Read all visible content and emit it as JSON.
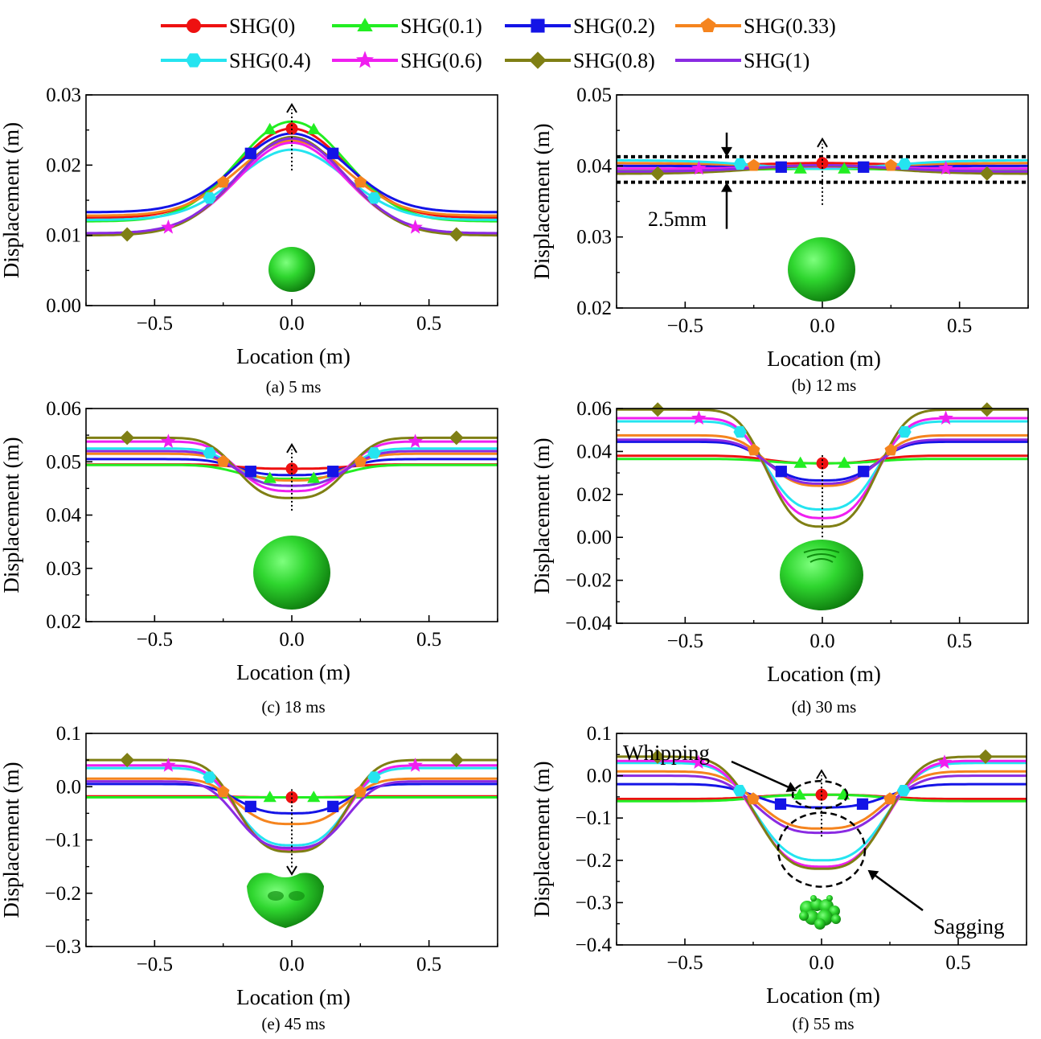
{
  "legend": {
    "placement": "top-center",
    "entries": [
      {
        "label": "SHG(0)",
        "color": "#ee1111",
        "marker": "circle"
      },
      {
        "label": "SHG(0.1)",
        "color": "#22ee22",
        "marker": "triangle"
      },
      {
        "label": "SHG(0.2)",
        "color": "#1414e6",
        "marker": "square"
      },
      {
        "label": "SHG(0.33)",
        "color": "#f5841e",
        "marker": "pentagon"
      },
      {
        "label": "SHG(0.4)",
        "color": "#25e4f0",
        "marker": "hexagon"
      },
      {
        "label": "SHG(0.6)",
        "color": "#f01ef0",
        "marker": "star"
      },
      {
        "label": "SHG(0.8)",
        "color": "#7f7f14",
        "marker": "diamond"
      },
      {
        "label": "SHG(1)",
        "color": "#8a2be2",
        "marker": "none"
      }
    ]
  },
  "colors": {
    "droplet": "#22cc22",
    "droplet_dark": "#0d7a0d"
  },
  "chart_data": [
    {
      "type": "line",
      "caption": "(a) 5 ms",
      "xlabel": "Location (m)",
      "ylabel": "Displacement (m)",
      "xlim": [
        -0.75,
        0.75
      ],
      "ylim": [
        0.0,
        0.03
      ],
      "xticks": [
        -0.5,
        0.0,
        0.5
      ],
      "xtick_labels": [
        "−0.5",
        "0.0",
        "0.5"
      ],
      "yticks": [
        0.0,
        0.01,
        0.02,
        0.03
      ],
      "ytick_labels": [
        "0.00",
        "0.01",
        "0.02",
        "0.03"
      ],
      "arrow": "up",
      "droplet": "small-sphere",
      "series": [
        {
          "name": "SHG(0)",
          "base": 0.0125,
          "center": 0.0252,
          "width": 0.5,
          "power": 1
        },
        {
          "name": "SHG(0.1)",
          "base": 0.012,
          "center": 0.0262,
          "width": 0.5,
          "power": 1
        },
        {
          "name": "SHG(0.2)",
          "base": 0.0133,
          "center": 0.0245,
          "width": 0.5,
          "power": 1
        },
        {
          "name": "SHG(0.33)",
          "base": 0.0128,
          "center": 0.0235,
          "width": 0.5,
          "power": 1
        },
        {
          "name": "SHG(0.4)",
          "base": 0.0122,
          "center": 0.0222,
          "width": 0.5,
          "power": 1
        },
        {
          "name": "SHG(0.6)",
          "base": 0.0102,
          "center": 0.0232,
          "width": 0.5,
          "power": 1
        },
        {
          "name": "SHG(0.8)",
          "base": 0.01,
          "center": 0.024,
          "width": 0.5,
          "power": 1
        },
        {
          "name": "SHG(1)",
          "base": 0.0103,
          "center": 0.0238,
          "width": 0.5,
          "power": 1
        }
      ]
    },
    {
      "type": "line",
      "caption": "(b) 12 ms",
      "xlabel": "Location (m)",
      "ylabel": "Displacement (m)",
      "xlim": [
        -0.75,
        0.75
      ],
      "ylim": [
        0.02,
        0.05
      ],
      "xticks": [
        -0.5,
        0.0,
        0.5
      ],
      "xtick_labels": [
        "−0.5",
        "0.0",
        "0.5"
      ],
      "yticks": [
        0.02,
        0.03,
        0.04,
        0.05
      ],
      "ytick_labels": [
        "0.02",
        "0.03",
        "0.04",
        "0.05"
      ],
      "arrow": "up",
      "droplet": "sphere",
      "band": {
        "upper": 0.0413,
        "lower": 0.0377,
        "label": "2.5mm"
      },
      "series": [
        {
          "name": "SHG(0)",
          "base": 0.04,
          "center": 0.0404,
          "width": 0.6,
          "power": 1
        },
        {
          "name": "SHG(0.1)",
          "base": 0.0394,
          "center": 0.0396,
          "width": 0.6,
          "power": 1
        },
        {
          "name": "SHG(0.2)",
          "base": 0.04,
          "center": 0.0398,
          "width": 0.6,
          "power": 1
        },
        {
          "name": "SHG(0.33)",
          "base": 0.0404,
          "center": 0.0398,
          "width": 0.6,
          "power": 1
        },
        {
          "name": "SHG(0.4)",
          "base": 0.0408,
          "center": 0.0396,
          "width": 0.6,
          "power": 1
        },
        {
          "name": "SHG(0.6)",
          "base": 0.0396,
          "center": 0.0399,
          "width": 0.6,
          "power": 1
        },
        {
          "name": "SHG(0.8)",
          "base": 0.0389,
          "center": 0.04,
          "width": 0.6,
          "power": 1
        },
        {
          "name": "SHG(1)",
          "base": 0.0392,
          "center": 0.0401,
          "width": 0.6,
          "power": 1
        }
      ]
    },
    {
      "type": "line",
      "caption": "(c) 18 ms",
      "xlabel": "Location (m)",
      "ylabel": "Displacement (m)",
      "xlim": [
        -0.75,
        0.75
      ],
      "ylim": [
        0.02,
        0.06
      ],
      "xticks": [
        -0.5,
        0.0,
        0.5
      ],
      "xtick_labels": [
        "−0.5",
        "0.0",
        "0.5"
      ],
      "yticks": [
        0.02,
        0.03,
        0.04,
        0.05,
        0.06
      ],
      "ytick_labels": [
        "0.02",
        "0.03",
        "0.04",
        "0.05",
        "0.06"
      ],
      "arrow": "up",
      "droplet": "large-sphere",
      "series": [
        {
          "name": "SHG(0)",
          "base": 0.0495,
          "center": 0.0487,
          "width": 0.42,
          "power": 1.5
        },
        {
          "name": "SHG(0.1)",
          "base": 0.0494,
          "center": 0.0468,
          "width": 0.42,
          "power": 1.5
        },
        {
          "name": "SHG(0.2)",
          "base": 0.0505,
          "center": 0.0475,
          "width": 0.42,
          "power": 1.5
        },
        {
          "name": "SHG(0.33)",
          "base": 0.0515,
          "center": 0.0465,
          "width": 0.42,
          "power": 1.5
        },
        {
          "name": "SHG(0.4)",
          "base": 0.0525,
          "center": 0.0455,
          "width": 0.42,
          "power": 1.5
        },
        {
          "name": "SHG(0.6)",
          "base": 0.0538,
          "center": 0.0445,
          "width": 0.42,
          "power": 1.5
        },
        {
          "name": "SHG(0.8)",
          "base": 0.0545,
          "center": 0.0432,
          "width": 0.42,
          "power": 1.5
        },
        {
          "name": "SHG(1)",
          "base": 0.052,
          "center": 0.0455,
          "width": 0.42,
          "power": 1.5
        }
      ]
    },
    {
      "type": "line",
      "caption": "(d) 30 ms",
      "xlabel": "Location (m)",
      "ylabel": "Displacement (m)",
      "xlim": [
        -0.75,
        0.75
      ],
      "ylim": [
        -0.04,
        0.06
      ],
      "xticks": [
        -0.5,
        0.0,
        0.5
      ],
      "xtick_labels": [
        "−0.5",
        "0.0",
        "0.5"
      ],
      "yticks": [
        -0.04,
        -0.02,
        0.0,
        0.02,
        0.04,
        0.06
      ],
      "ytick_labels": [
        "−0.04",
        "−0.02",
        "0.00",
        "0.02",
        "0.04",
        "0.06"
      ],
      "arrow": "down",
      "droplet": "rippled-sphere",
      "series": [
        {
          "name": "SHG(0)",
          "base": 0.038,
          "center": 0.0345,
          "width": 0.42,
          "power": 1.5
        },
        {
          "name": "SHG(0.1)",
          "base": 0.0365,
          "center": 0.0345,
          "width": 0.42,
          "power": 1.5
        },
        {
          "name": "SHG(0.2)",
          "base": 0.0445,
          "center": 0.0265,
          "width": 0.42,
          "power": 1.5
        },
        {
          "name": "SHG(0.33)",
          "base": 0.0475,
          "center": 0.024,
          "width": 0.42,
          "power": 1.5
        },
        {
          "name": "SHG(0.4)",
          "base": 0.054,
          "center": 0.013,
          "width": 0.42,
          "power": 1.5
        },
        {
          "name": "SHG(0.6)",
          "base": 0.0555,
          "center": 0.009,
          "width": 0.42,
          "power": 1.5
        },
        {
          "name": "SHG(0.8)",
          "base": 0.0595,
          "center": 0.005,
          "width": 0.42,
          "power": 1.5
        },
        {
          "name": "SHG(1)",
          "base": 0.0455,
          "center": 0.025,
          "width": 0.42,
          "power": 1.5
        }
      ]
    },
    {
      "type": "line",
      "caption": "(e) 45 ms",
      "xlabel": "Location (m)",
      "ylabel": "Displacement (m)",
      "xlim": [
        -0.75,
        0.75
      ],
      "ylim": [
        -0.3,
        0.1
      ],
      "xticks": [
        -0.5,
        0.0,
        0.5
      ],
      "xtick_labels": [
        "−0.5",
        "0.0",
        "0.5"
      ],
      "yticks": [
        -0.3,
        -0.2,
        -0.1,
        0.0,
        0.1
      ],
      "ytick_labels": [
        "−0.3",
        "−0.2",
        "−0.1",
        "0.0",
        "0.1"
      ],
      "arrow": "down",
      "droplet": "flattened-blob",
      "series": [
        {
          "name": "SHG(0)",
          "base": -0.018,
          "center": -0.02,
          "width": 0.42,
          "power": 1.5
        },
        {
          "name": "SHG(0.1)",
          "base": -0.02,
          "center": -0.02,
          "width": 0.42,
          "power": 1.5
        },
        {
          "name": "SHG(0.2)",
          "base": 0.005,
          "center": -0.05,
          "width": 0.42,
          "power": 1.5
        },
        {
          "name": "SHG(0.33)",
          "base": 0.015,
          "center": -0.07,
          "width": 0.42,
          "power": 1.5
        },
        {
          "name": "SHG(0.4)",
          "base": 0.035,
          "center": -0.11,
          "width": 0.42,
          "power": 1.5
        },
        {
          "name": "SHG(0.6)",
          "base": 0.04,
          "center": -0.118,
          "width": 0.42,
          "power": 1.5
        },
        {
          "name": "SHG(0.8)",
          "base": 0.05,
          "center": -0.122,
          "width": 0.42,
          "power": 1.5
        },
        {
          "name": "SHG(1)",
          "base": 0.01,
          "center": -0.115,
          "width": 0.42,
          "power": 1.5
        }
      ]
    },
    {
      "type": "line",
      "caption": "(f) 55 ms",
      "xlabel": "Location (m)",
      "ylabel": "Displacement (m)",
      "xlim": [
        -0.75,
        0.75
      ],
      "ylim": [
        -0.4,
        0.1
      ],
      "xticks": [
        -0.5,
        0.0,
        0.5
      ],
      "xtick_labels": [
        "−0.5",
        "0.0",
        "0.5"
      ],
      "yticks": [
        -0.4,
        -0.3,
        -0.2,
        -0.1,
        0.0,
        0.1
      ],
      "ytick_labels": [
        "−0.4",
        "−0.3",
        "−0.2",
        "−0.1",
        "0.0",
        "0.1"
      ],
      "arrow": "up",
      "droplet": "fragments",
      "annotations": [
        {
          "text": "Whipping",
          "target": "top-ellipse"
        },
        {
          "text": "Sagging",
          "target": "bottom-ellipse"
        }
      ],
      "series": [
        {
          "name": "SHG(0)",
          "base": -0.055,
          "center": -0.045,
          "width": 0.5,
          "power": 1.5
        },
        {
          "name": "SHG(0.1)",
          "base": -0.06,
          "center": -0.045,
          "width": 0.5,
          "power": 1.5
        },
        {
          "name": "SHG(0.2)",
          "base": -0.02,
          "center": -0.075,
          "width": 0.5,
          "power": 1.5
        },
        {
          "name": "SHG(0.33)",
          "base": 0.01,
          "center": -0.125,
          "width": 0.5,
          "power": 1.5
        },
        {
          "name": "SHG(0.4)",
          "base": 0.03,
          "center": -0.2,
          "width": 0.5,
          "power": 1.5
        },
        {
          "name": "SHG(0.6)",
          "base": 0.035,
          "center": -0.215,
          "width": 0.5,
          "power": 1.5
        },
        {
          "name": "SHG(0.8)",
          "base": 0.045,
          "center": -0.22,
          "width": 0.5,
          "power": 1.5
        },
        {
          "name": "SHG(1)",
          "base": 0.0,
          "center": -0.135,
          "width": 0.5,
          "power": 1.5
        }
      ]
    }
  ]
}
